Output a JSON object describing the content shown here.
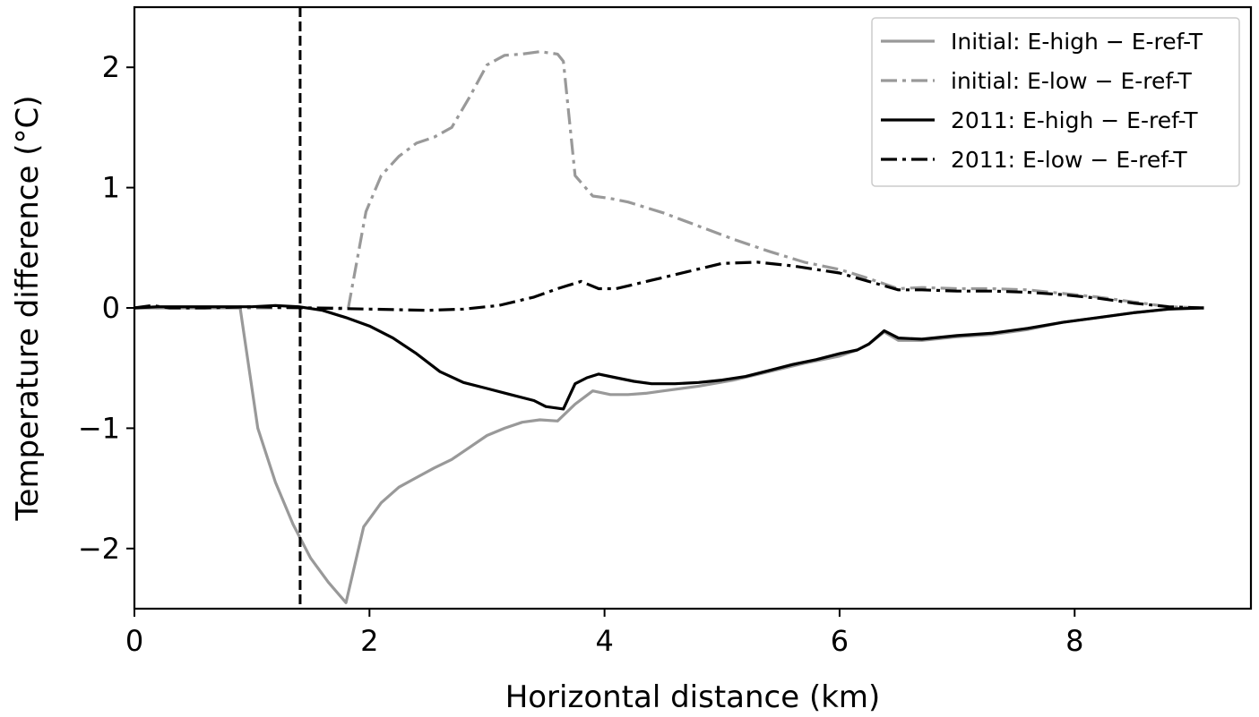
{
  "chart_data": {
    "type": "line",
    "title": "",
    "xlabel": "Horizontal distance (km)",
    "ylabel": "Temperature difference (°C)",
    "xlim": [
      0,
      9.5
    ],
    "ylim": [
      -2.5,
      2.5
    ],
    "x_ticks": [
      0,
      2,
      4,
      6,
      8
    ],
    "x_tick_labels": [
      "0",
      "2",
      "4",
      "6",
      "8"
    ],
    "y_ticks": [
      -2,
      -1,
      0,
      1,
      2
    ],
    "y_tick_labels": [
      "−2",
      "−1",
      "0",
      "1",
      "2"
    ],
    "grid": false,
    "legend_position": "top-right",
    "vertical_reference_line": {
      "x": 1.41,
      "style": "dashed",
      "color": "#000000"
    },
    "series": [
      {
        "name": "Initial: E-high − E-ref-T",
        "color": "#999999",
        "dash": "solid",
        "x": [
          0,
          0.3,
          0.6,
          0.9,
          1.05,
          1.2,
          1.35,
          1.5,
          1.65,
          1.8,
          1.95,
          2.1,
          2.25,
          2.4,
          2.55,
          2.7,
          2.85,
          3.0,
          3.15,
          3.3,
          3.45,
          3.6,
          3.75,
          3.9,
          4.05,
          4.2,
          4.35,
          4.5,
          4.8,
          5.1,
          5.4,
          5.7,
          6.0,
          6.15,
          6.25,
          6.38,
          6.5,
          6.7,
          7.0,
          7.3,
          7.6,
          7.9,
          8.2,
          8.5,
          8.8,
          9.0,
          9.1
        ],
        "y": [
          0.0,
          0.0,
          0.0,
          0.0,
          -1.0,
          -1.45,
          -1.8,
          -2.08,
          -2.28,
          -2.45,
          -1.82,
          -1.62,
          -1.49,
          -1.41,
          -1.33,
          -1.26,
          -1.16,
          -1.06,
          -1.0,
          -0.95,
          -0.93,
          -0.94,
          -0.8,
          -0.69,
          -0.72,
          -0.72,
          -0.71,
          -0.69,
          -0.65,
          -0.6,
          -0.53,
          -0.46,
          -0.4,
          -0.35,
          -0.3,
          -0.2,
          -0.27,
          -0.27,
          -0.24,
          -0.22,
          -0.18,
          -0.12,
          -0.08,
          -0.04,
          -0.01,
          0.0,
          0.0
        ]
      },
      {
        "name": "initial: E-low − E-ref-T",
        "color": "#999999",
        "dash": "dashdot",
        "x": [
          0,
          0.5,
          1.0,
          1.5,
          1.82,
          1.97,
          2.1,
          2.25,
          2.4,
          2.55,
          2.7,
          2.85,
          3.0,
          3.15,
          3.3,
          3.45,
          3.6,
          3.65,
          3.75,
          3.9,
          4.05,
          4.2,
          4.5,
          4.8,
          5.1,
          5.4,
          5.7,
          6.0,
          6.2,
          6.5,
          6.7,
          7.0,
          7.3,
          7.6,
          7.9,
          8.2,
          8.5,
          8.8,
          9.1
        ],
        "y": [
          0.0,
          0.0,
          0.0,
          0.0,
          0.0,
          0.8,
          1.1,
          1.26,
          1.37,
          1.42,
          1.5,
          1.75,
          2.02,
          2.1,
          2.11,
          2.13,
          2.11,
          2.05,
          1.1,
          0.93,
          0.91,
          0.88,
          0.79,
          0.68,
          0.57,
          0.47,
          0.38,
          0.32,
          0.26,
          0.16,
          0.17,
          0.16,
          0.16,
          0.15,
          0.12,
          0.09,
          0.05,
          0.01,
          0.0
        ]
      },
      {
        "name": "2011: E-high − E-ref-T",
        "color": "#000000",
        "dash": "solid",
        "x": [
          0,
          0.2,
          0.4,
          0.6,
          0.8,
          1.0,
          1.2,
          1.4,
          1.6,
          1.8,
          2.0,
          2.2,
          2.4,
          2.6,
          2.8,
          3.0,
          3.2,
          3.4,
          3.5,
          3.65,
          3.75,
          3.85,
          3.95,
          4.1,
          4.25,
          4.4,
          4.6,
          4.8,
          5.0,
          5.2,
          5.4,
          5.6,
          5.8,
          6.0,
          6.15,
          6.25,
          6.38,
          6.5,
          6.7,
          7.0,
          7.3,
          7.6,
          7.9,
          8.2,
          8.5,
          8.8,
          9.1
        ],
        "y": [
          0.0,
          0.01,
          0.01,
          0.01,
          0.01,
          0.01,
          0.02,
          0.01,
          -0.02,
          -0.08,
          -0.15,
          -0.25,
          -0.38,
          -0.53,
          -0.62,
          -0.67,
          -0.72,
          -0.77,
          -0.82,
          -0.84,
          -0.63,
          -0.58,
          -0.55,
          -0.58,
          -0.61,
          -0.63,
          -0.63,
          -0.62,
          -0.6,
          -0.57,
          -0.52,
          -0.47,
          -0.43,
          -0.38,
          -0.35,
          -0.3,
          -0.19,
          -0.25,
          -0.26,
          -0.23,
          -0.21,
          -0.17,
          -0.12,
          -0.08,
          -0.04,
          -0.01,
          0.0
        ]
      },
      {
        "name": "2011: E-low − E-ref-T",
        "color": "#000000",
        "dash": "dashdot",
        "x": [
          0,
          0.15,
          0.3,
          0.6,
          1.0,
          1.5,
          2.0,
          2.5,
          2.8,
          3.1,
          3.4,
          3.6,
          3.8,
          3.95,
          4.1,
          4.4,
          4.7,
          5.0,
          5.3,
          5.6,
          6.0,
          6.25,
          6.5,
          6.7,
          7.0,
          7.3,
          7.6,
          7.9,
          8.2,
          8.5,
          8.8,
          9.1
        ],
        "y": [
          0.0,
          0.02,
          0.0,
          0.0,
          0.01,
          0.0,
          -0.01,
          -0.02,
          -0.01,
          0.02,
          0.09,
          0.16,
          0.22,
          0.16,
          0.16,
          0.23,
          0.3,
          0.37,
          0.38,
          0.35,
          0.29,
          0.22,
          0.15,
          0.15,
          0.14,
          0.14,
          0.13,
          0.11,
          0.08,
          0.04,
          0.01,
          0.0
        ]
      }
    ]
  }
}
